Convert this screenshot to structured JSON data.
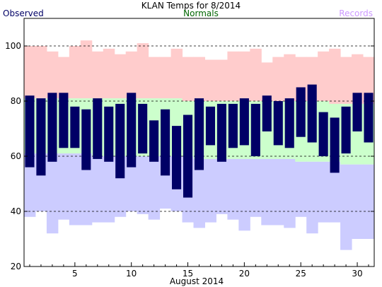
{
  "chart_data": {
    "type": "bar",
    "title": "KLAN Temps for 8/2014",
    "xlabel": "August 2014",
    "ylabel": "",
    "legend": {
      "observed": "Observed",
      "normals": "Normals",
      "records": "Records"
    },
    "colors": {
      "observed": "#000066",
      "normals": "#ccffcc",
      "records_high": "#ffcccc",
      "records_low": "#ccccff",
      "legend_observed": "#000066",
      "legend_normals": "#006600",
      "legend_records": "#cc99ff"
    },
    "xlim": [
      0.5,
      31.5
    ],
    "ylim": [
      20,
      110
    ],
    "y_ticks": [
      20,
      40,
      60,
      80,
      100
    ],
    "x_ticks": [
      5,
      10,
      15,
      20,
      25,
      30
    ],
    "dashed_gridlines": [
      40,
      60,
      80,
      100
    ],
    "days": [
      1,
      2,
      3,
      4,
      5,
      6,
      7,
      8,
      9,
      10,
      11,
      12,
      13,
      14,
      15,
      16,
      17,
      18,
      19,
      20,
      21,
      22,
      23,
      24,
      25,
      26,
      27,
      28,
      29,
      30,
      31
    ],
    "observed_high": [
      82,
      81,
      83,
      83,
      78,
      77,
      81,
      78,
      79,
      83,
      79,
      73,
      77,
      71,
      75,
      81,
      78,
      79,
      79,
      81,
      79,
      82,
      80,
      81,
      85,
      86,
      76,
      74,
      78,
      83,
      83
    ],
    "observed_low": [
      56,
      53,
      58,
      63,
      63,
      55,
      59,
      58,
      52,
      56,
      61,
      58,
      53,
      48,
      45,
      55,
      64,
      58,
      63,
      64,
      60,
      69,
      64,
      63,
      67,
      65,
      60,
      54,
      61,
      69,
      65
    ],
    "normal_high": [
      81,
      81,
      81,
      81,
      81,
      81,
      81,
      81,
      81,
      81,
      81,
      81,
      81,
      81,
      80,
      80,
      80,
      80,
      80,
      80,
      80,
      80,
      80,
      80,
      80,
      80,
      80,
      79,
      79,
      79,
      79
    ],
    "normal_low": [
      61,
      61,
      61,
      61,
      61,
      61,
      60,
      60,
      60,
      60,
      60,
      60,
      60,
      60,
      60,
      59,
      59,
      59,
      59,
      59,
      59,
      59,
      59,
      59,
      58,
      58,
      58,
      58,
      57,
      57,
      57
    ],
    "record_high": [
      100,
      100,
      98,
      96,
      100,
      102,
      98,
      99,
      97,
      98,
      101,
      96,
      96,
      99,
      96,
      96,
      95,
      95,
      98,
      98,
      99,
      94,
      96,
      97,
      96,
      96,
      98,
      99,
      96,
      97,
      96
    ],
    "record_low": [
      38,
      40,
      32,
      37,
      35,
      35,
      36,
      36,
      38,
      40,
      39,
      37,
      41,
      40,
      36,
      34,
      36,
      39,
      37,
      33,
      38,
      35,
      35,
      34,
      38,
      32,
      36,
      36,
      26,
      30,
      30
    ]
  }
}
